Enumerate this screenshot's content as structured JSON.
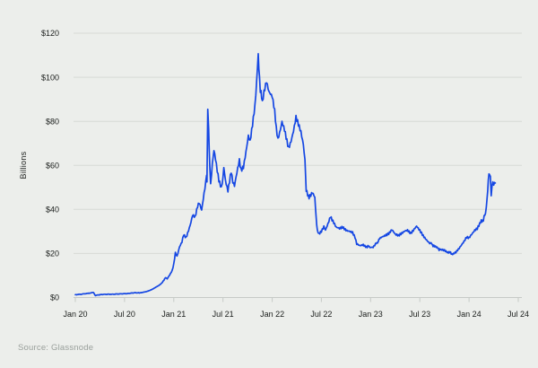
{
  "colors": {
    "background": "#eceeeb",
    "gridline": "#d7dad6",
    "axis": "#c6cac6",
    "label": "#1b1e1c",
    "source_text": "#9aa09c",
    "line": "#1547e3"
  },
  "chart_data": {
    "type": "line",
    "ylabel": "Billions",
    "source": "Source: Glassnode",
    "ylim": [
      0,
      120
    ],
    "grid": "horizontal",
    "legend": "none",
    "x_unit": "months since Jan 2020",
    "yticks": [
      {
        "label": "$120",
        "value": 120
      },
      {
        "label": "$100",
        "value": 100
      },
      {
        "label": "$80",
        "value": 80
      },
      {
        "label": "$60",
        "value": 60
      },
      {
        "label": "$40",
        "value": 40
      },
      {
        "label": "$20",
        "value": 20
      },
      {
        "label": "$0",
        "value": 0
      }
    ],
    "xticks": [
      {
        "label": "Jan 20",
        "month": 0
      },
      {
        "label": "Jul 20",
        "month": 6
      },
      {
        "label": "Jan 21",
        "month": 12
      },
      {
        "label": "Jul 21",
        "month": 18
      },
      {
        "label": "Jan 22",
        "month": 24
      },
      {
        "label": "Jul 22",
        "month": 30
      },
      {
        "label": "Jan 23",
        "month": 36
      },
      {
        "label": "Jul 23",
        "month": 42
      },
      {
        "label": "Jan 24",
        "month": 48
      },
      {
        "label": "Jul 24",
        "month": 54
      }
    ],
    "series": [
      {
        "name": "value-usd-billions",
        "color": "#1547e3",
        "points": [
          [
            0,
            1.3
          ],
          [
            0.7,
            1.5
          ],
          [
            1.3,
            1.8
          ],
          [
            1.9,
            2.1
          ],
          [
            2.2,
            2.3
          ],
          [
            2.45,
            0.9
          ],
          [
            2.8,
            1.2
          ],
          [
            3.3,
            1.4
          ],
          [
            3.9,
            1.5
          ],
          [
            4.5,
            1.5
          ],
          [
            5.1,
            1.6
          ],
          [
            5.7,
            1.7
          ],
          [
            6.3,
            1.8
          ],
          [
            6.8,
            2.0
          ],
          [
            7.3,
            2.2
          ],
          [
            7.8,
            2.1
          ],
          [
            8.2,
            2.4
          ],
          [
            8.6,
            2.7
          ],
          [
            9.0,
            3.1
          ],
          [
            9.4,
            3.7
          ],
          [
            9.8,
            4.6
          ],
          [
            10.2,
            5.5
          ],
          [
            10.5,
            6.5
          ],
          [
            10.8,
            8.0
          ],
          [
            11.0,
            9.2
          ],
          [
            11.2,
            8.6
          ],
          [
            11.5,
            10.2
          ],
          [
            11.8,
            12.0
          ],
          [
            12.0,
            15.0
          ],
          [
            12.2,
            20.0
          ],
          [
            12.4,
            18.5
          ],
          [
            12.7,
            23.0
          ],
          [
            13.0,
            25.5
          ],
          [
            13.2,
            29.0
          ],
          [
            13.5,
            27.5
          ],
          [
            13.8,
            30.5
          ],
          [
            14.1,
            34.0
          ],
          [
            14.3,
            37.0
          ],
          [
            14.6,
            36.0
          ],
          [
            14.9,
            41.0
          ],
          [
            15.1,
            43.0
          ],
          [
            15.4,
            40.0
          ],
          [
            15.7,
            48.0
          ],
          [
            15.9,
            53.0
          ],
          [
            16.0,
            57.0
          ],
          [
            16.05,
            52.0
          ],
          [
            16.15,
            85.0
          ],
          [
            16.25,
            76.0
          ],
          [
            16.4,
            60.0
          ],
          [
            16.5,
            51.0
          ],
          [
            16.7,
            60.0
          ],
          [
            16.9,
            66.0
          ],
          [
            17.1,
            62.0
          ],
          [
            17.3,
            57.0
          ],
          [
            17.5,
            53.0
          ],
          [
            17.8,
            50.0
          ],
          [
            18.0,
            55.0
          ],
          [
            18.1,
            60.0
          ],
          [
            18.3,
            54.0
          ],
          [
            18.6,
            49.0
          ],
          [
            18.8,
            53.0
          ],
          [
            19.0,
            57.0
          ],
          [
            19.2,
            52.0
          ],
          [
            19.4,
            50.0
          ],
          [
            19.7,
            56.0
          ],
          [
            20.0,
            62.0
          ],
          [
            20.2,
            58.0
          ],
          [
            20.5,
            60.0
          ],
          [
            20.8,
            67.0
          ],
          [
            21.1,
            74.0
          ],
          [
            21.3,
            71.0
          ],
          [
            21.6,
            78.0
          ],
          [
            21.9,
            86.0
          ],
          [
            22.1,
            97.0
          ],
          [
            22.3,
            110.0
          ],
          [
            22.45,
            100.0
          ],
          [
            22.55,
            94.0
          ],
          [
            22.8,
            89.0
          ],
          [
            23.0,
            94.0
          ],
          [
            23.3,
            99.0
          ],
          [
            23.6,
            94.0
          ],
          [
            24.0,
            91.0
          ],
          [
            24.3,
            84.0
          ],
          [
            24.5,
            76.0
          ],
          [
            24.7,
            71.0
          ],
          [
            25.0,
            76.0
          ],
          [
            25.2,
            80.0
          ],
          [
            25.5,
            77.0
          ],
          [
            25.8,
            72.0
          ],
          [
            26.0,
            68.5
          ],
          [
            26.3,
            71.0
          ],
          [
            26.6,
            75.0
          ],
          [
            26.9,
            81.0
          ],
          [
            27.2,
            78.0
          ],
          [
            27.5,
            75.0
          ],
          [
            27.8,
            70.0
          ],
          [
            28.0,
            63.0
          ],
          [
            28.15,
            48.0
          ],
          [
            28.5,
            46.0
          ],
          [
            28.9,
            47.5
          ],
          [
            29.2,
            45.0
          ],
          [
            29.35,
            37.0
          ],
          [
            29.5,
            30.0
          ],
          [
            29.7,
            28.5
          ],
          [
            30.0,
            30.0
          ],
          [
            30.3,
            32.5
          ],
          [
            30.5,
            31.0
          ],
          [
            30.8,
            34.0
          ],
          [
            31.1,
            37.0
          ],
          [
            31.4,
            34.5
          ],
          [
            31.8,
            31.5
          ],
          [
            32.2,
            31.0
          ],
          [
            32.6,
            32.0
          ],
          [
            33.0,
            31.0
          ],
          [
            33.4,
            30.5
          ],
          [
            33.8,
            29.5
          ],
          [
            34.1,
            27.0
          ],
          [
            34.3,
            24.0
          ],
          [
            34.7,
            23.3
          ],
          [
            35.1,
            24.0
          ],
          [
            35.5,
            23.2
          ],
          [
            36.0,
            23.0
          ],
          [
            36.3,
            22.8
          ],
          [
            36.6,
            24.0
          ],
          [
            37.1,
            26.5
          ],
          [
            37.5,
            27.7
          ],
          [
            37.8,
            28.5
          ],
          [
            38.2,
            29.5
          ],
          [
            38.6,
            31.0
          ],
          [
            39.0,
            28.5
          ],
          [
            39.4,
            27.7
          ],
          [
            39.8,
            29.0
          ],
          [
            40.2,
            30.5
          ],
          [
            40.5,
            31.0
          ],
          [
            40.9,
            29.5
          ],
          [
            41.2,
            30.5
          ],
          [
            41.6,
            32.0
          ],
          [
            42.0,
            30.0
          ],
          [
            42.4,
            28.0
          ],
          [
            42.8,
            26.5
          ],
          [
            43.2,
            25.0
          ],
          [
            43.7,
            23.5
          ],
          [
            44.1,
            22.5
          ],
          [
            44.6,
            21.5
          ],
          [
            45.0,
            21.5
          ],
          [
            45.4,
            20.8
          ],
          [
            46.0,
            19.8
          ],
          [
            46.4,
            20.5
          ],
          [
            46.8,
            22.0
          ],
          [
            47.1,
            23.7
          ],
          [
            47.4,
            25.5
          ],
          [
            47.7,
            27.7
          ],
          [
            48.0,
            27.5
          ],
          [
            48.3,
            29.0
          ],
          [
            48.7,
            30.5
          ],
          [
            49.0,
            31.0
          ],
          [
            49.3,
            33.0
          ],
          [
            49.5,
            34.5
          ],
          [
            49.75,
            35.5
          ],
          [
            50.0,
            38.0
          ],
          [
            50.2,
            45.0
          ],
          [
            50.35,
            53.0
          ],
          [
            50.5,
            57.5
          ],
          [
            50.6,
            55.0
          ],
          [
            50.7,
            47.5
          ],
          [
            50.8,
            50.5
          ],
          [
            50.9,
            53.5
          ],
          [
            51.0,
            51.0
          ],
          [
            51.1,
            52.5
          ],
          [
            51.2,
            52.0
          ]
        ]
      }
    ]
  }
}
